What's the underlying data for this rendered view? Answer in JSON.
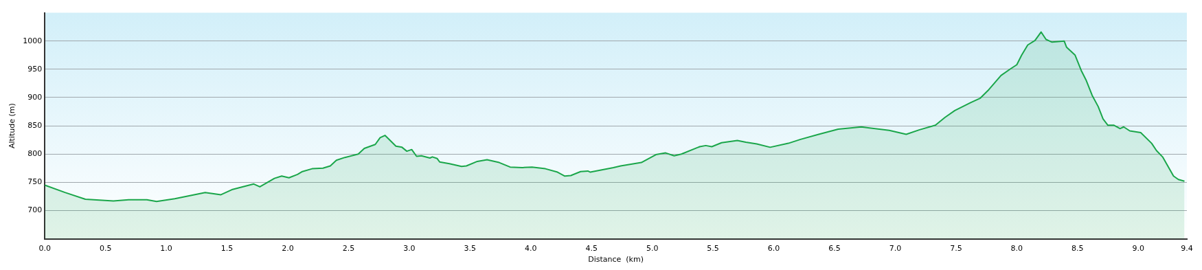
{
  "chart_data": {
    "type": "area",
    "xlabel": "Distance  (km)",
    "ylabel": "Altitude (m)",
    "xlim": [
      0,
      9.4
    ],
    "ylim": [
      650,
      1050
    ],
    "xticks": [
      {
        "value": 0,
        "label": "0.0"
      },
      0.5,
      {
        "value": 1,
        "label": "1.0"
      },
      1.5,
      {
        "value": 2,
        "label": "2.0"
      },
      2.5,
      {
        "value": 3,
        "label": "3.0"
      },
      3.5,
      {
        "value": 4,
        "label": "4.0"
      },
      4.5,
      {
        "value": 5,
        "label": "5.0"
      },
      5.5,
      {
        "value": 6,
        "label": "6.0"
      },
      6.5,
      {
        "value": 7,
        "label": "7.0"
      },
      7.5,
      {
        "value": 8,
        "label": "8.0"
      },
      8.5,
      {
        "value": 9,
        "label": "9.0"
      },
      9.4
    ],
    "yticks": [
      700,
      750,
      800,
      850,
      900,
      950,
      1000
    ],
    "grid": "y",
    "legend": false,
    "series": [
      {
        "color": "#1aa64a",
        "x": [
          0,
          0.166,
          0.334,
          0.565,
          0.69,
          0.84,
          0.92,
          1.07,
          1.32,
          1.45,
          1.54,
          1.72,
          1.77,
          1.89,
          1.95,
          2.01,
          2.08,
          2.12,
          2.2,
          2.29,
          2.35,
          2.4,
          2.47,
          2.58,
          2.63,
          2.72,
          2.76,
          2.8,
          2.89,
          2.94,
          2.98,
          3.02,
          3.06,
          3.1,
          3.17,
          3.19,
          3.23,
          3.25,
          3.33,
          3.43,
          3.47,
          3.56,
          3.64,
          3.74,
          3.83,
          3.93,
          4.01,
          4.12,
          4.22,
          4.28,
          4.33,
          4.41,
          4.47,
          4.49,
          4.68,
          4.74,
          4.91,
          5.03,
          5.11,
          5.18,
          5.24,
          5.39,
          5.44,
          5.49,
          5.57,
          5.7,
          5.77,
          5.86,
          5.97,
          6.12,
          6.22,
          6.37,
          6.53,
          6.72,
          6.95,
          7.09,
          7.2,
          7.33,
          7.41,
          7.49,
          7.62,
          7.7,
          7.77,
          7.87,
          7.95,
          8.0,
          8.04,
          8.09,
          8.15,
          8.2,
          8.24,
          8.29,
          8.39,
          8.41,
          8.48,
          8.53,
          8.57,
          8.62,
          8.67,
          8.71,
          8.75,
          8.8,
          8.85,
          8.88,
          8.93,
          9.02,
          9.11,
          9.15,
          9.2,
          9.29,
          9.33,
          9.38
        ],
        "values": [
          745,
          732,
          720,
          717,
          719,
          719,
          716,
          721,
          732,
          728,
          737,
          747,
          742,
          757,
          761,
          758,
          764,
          769,
          774,
          775,
          779,
          789,
          794,
          800,
          810,
          817,
          829,
          833,
          814,
          812,
          805,
          808,
          796,
          797,
          793,
          795,
          792,
          786,
          783,
          778,
          779,
          787,
          790,
          785,
          777,
          776,
          777,
          774,
          768,
          761,
          762,
          769,
          770,
          768,
          776,
          779,
          785,
          799,
          802,
          797,
          800,
          813,
          815,
          813,
          820,
          824,
          821,
          818,
          812,
          819,
          826,
          835,
          844,
          848,
          842,
          835,
          843,
          851,
          865,
          877,
          891,
          899,
          914,
          939,
          951,
          958,
          975,
          993,
          1001,
          1016,
          1003,
          998,
          1000,
          989,
          975,
          948,
          931,
          904,
          884,
          862,
          851,
          851,
          845,
          848,
          841,
          838,
          819,
          806,
          795,
          761,
          755,
          752
        ]
      }
    ]
  }
}
